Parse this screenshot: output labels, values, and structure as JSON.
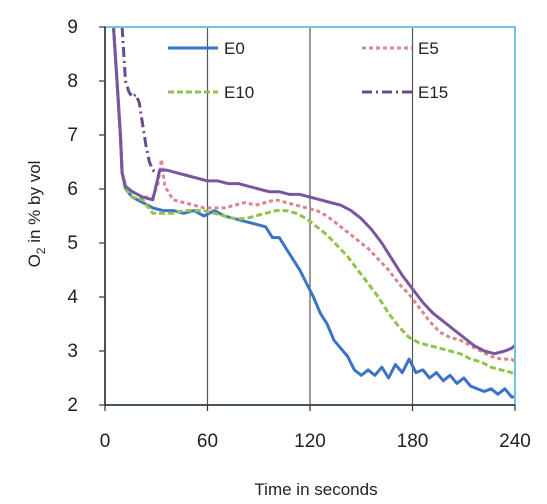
{
  "chart_data": {
    "type": "line",
    "title": "",
    "xlabel": "Time in seconds",
    "ylabel_main": "O",
    "ylabel_sub": "2",
    "ylabel_rest": " in % by vol",
    "xlim": [
      0,
      240
    ],
    "ylim": [
      2,
      9
    ],
    "xticks": [
      0,
      60,
      120,
      180,
      240
    ],
    "yticks": [
      2,
      3,
      4,
      5,
      6,
      7,
      8,
      9
    ],
    "vertical_grid": true,
    "horizontal_grid": false,
    "legend_placement": "top, inside plot, two columns",
    "frame_color": "#6fc4e6",
    "grid_color": "#555555",
    "series": [
      {
        "name": "E0",
        "color": "#3b74c4",
        "dash": "solid",
        "points": [
          [
            5,
            9.0
          ],
          [
            7,
            8.0
          ],
          [
            9,
            7.0
          ],
          [
            10,
            6.3
          ],
          [
            12,
            6.0
          ],
          [
            16,
            5.85
          ],
          [
            22,
            5.75
          ],
          [
            28,
            5.65
          ],
          [
            34,
            5.6
          ],
          [
            40,
            5.6
          ],
          [
            46,
            5.55
          ],
          [
            52,
            5.6
          ],
          [
            58,
            5.5
          ],
          [
            64,
            5.6
          ],
          [
            70,
            5.5
          ],
          [
            76,
            5.45
          ],
          [
            82,
            5.4
          ],
          [
            88,
            5.35
          ],
          [
            94,
            5.3
          ],
          [
            98,
            5.1
          ],
          [
            102,
            5.1
          ],
          [
            106,
            4.9
          ],
          [
            110,
            4.7
          ],
          [
            114,
            4.5
          ],
          [
            118,
            4.25
          ],
          [
            122,
            4.0
          ],
          [
            126,
            3.7
          ],
          [
            130,
            3.5
          ],
          [
            134,
            3.2
          ],
          [
            138,
            3.05
          ],
          [
            142,
            2.9
          ],
          [
            146,
            2.65
          ],
          [
            150,
            2.55
          ],
          [
            154,
            2.65
          ],
          [
            158,
            2.55
          ],
          [
            162,
            2.7
          ],
          [
            166,
            2.5
          ],
          [
            170,
            2.75
          ],
          [
            174,
            2.6
          ],
          [
            178,
            2.85
          ],
          [
            182,
            2.6
          ],
          [
            186,
            2.65
          ],
          [
            190,
            2.5
          ],
          [
            194,
            2.6
          ],
          [
            198,
            2.45
          ],
          [
            202,
            2.55
          ],
          [
            206,
            2.4
          ],
          [
            210,
            2.5
          ],
          [
            214,
            2.35
          ],
          [
            218,
            2.3
          ],
          [
            222,
            2.25
          ],
          [
            226,
            2.3
          ],
          [
            230,
            2.2
          ],
          [
            234,
            2.3
          ],
          [
            238,
            2.15
          ],
          [
            240,
            2.15
          ]
        ]
      },
      {
        "name": "E5",
        "color": "#d9878a",
        "dash": "4,3",
        "points": [
          [
            5,
            9.0
          ],
          [
            7,
            8.0
          ],
          [
            9,
            7.0
          ],
          [
            10,
            6.3
          ],
          [
            12,
            6.05
          ],
          [
            16,
            5.95
          ],
          [
            22,
            5.85
          ],
          [
            28,
            5.85
          ],
          [
            31,
            6.1
          ],
          [
            33,
            6.55
          ],
          [
            35,
            6.05
          ],
          [
            40,
            5.8
          ],
          [
            46,
            5.75
          ],
          [
            52,
            5.7
          ],
          [
            58,
            5.65
          ],
          [
            64,
            5.65
          ],
          [
            70,
            5.65
          ],
          [
            76,
            5.7
          ],
          [
            82,
            5.75
          ],
          [
            88,
            5.7
          ],
          [
            94,
            5.75
          ],
          [
            100,
            5.8
          ],
          [
            106,
            5.75
          ],
          [
            112,
            5.7
          ],
          [
            118,
            5.65
          ],
          [
            124,
            5.6
          ],
          [
            130,
            5.5
          ],
          [
            136,
            5.35
          ],
          [
            142,
            5.2
          ],
          [
            148,
            5.05
          ],
          [
            154,
            4.9
          ],
          [
            160,
            4.7
          ],
          [
            166,
            4.5
          ],
          [
            172,
            4.25
          ],
          [
            178,
            4.05
          ],
          [
            184,
            3.8
          ],
          [
            190,
            3.55
          ],
          [
            196,
            3.35
          ],
          [
            202,
            3.25
          ],
          [
            208,
            3.2
          ],
          [
            214,
            3.1
          ],
          [
            220,
            3.0
          ],
          [
            226,
            2.9
          ],
          [
            232,
            2.85
          ],
          [
            238,
            2.85
          ],
          [
            240,
            2.8
          ]
        ]
      },
      {
        "name": "E10",
        "color": "#8fc24e",
        "dash": "6,3",
        "points": [
          [
            5,
            9.0
          ],
          [
            7,
            8.0
          ],
          [
            9,
            7.0
          ],
          [
            10,
            6.3
          ],
          [
            12,
            6.0
          ],
          [
            16,
            5.85
          ],
          [
            22,
            5.8
          ],
          [
            28,
            5.55
          ],
          [
            34,
            5.55
          ],
          [
            40,
            5.55
          ],
          [
            46,
            5.6
          ],
          [
            52,
            5.6
          ],
          [
            58,
            5.6
          ],
          [
            64,
            5.55
          ],
          [
            70,
            5.5
          ],
          [
            76,
            5.45
          ],
          [
            82,
            5.45
          ],
          [
            88,
            5.5
          ],
          [
            94,
            5.55
          ],
          [
            100,
            5.6
          ],
          [
            106,
            5.6
          ],
          [
            112,
            5.55
          ],
          [
            118,
            5.45
          ],
          [
            124,
            5.3
          ],
          [
            130,
            5.15
          ],
          [
            136,
            4.95
          ],
          [
            142,
            4.75
          ],
          [
            148,
            4.5
          ],
          [
            154,
            4.25
          ],
          [
            160,
            4.0
          ],
          [
            166,
            3.7
          ],
          [
            172,
            3.45
          ],
          [
            178,
            3.25
          ],
          [
            184,
            3.15
          ],
          [
            190,
            3.1
          ],
          [
            196,
            3.05
          ],
          [
            202,
            3.0
          ],
          [
            208,
            2.95
          ],
          [
            214,
            2.85
          ],
          [
            220,
            2.8
          ],
          [
            226,
            2.7
          ],
          [
            232,
            2.65
          ],
          [
            238,
            2.6
          ],
          [
            240,
            2.55
          ]
        ]
      },
      {
        "name": "E15",
        "color": "#7a55a0",
        "dash": "solid",
        "points": [
          [
            5,
            9.0
          ],
          [
            7,
            8.0
          ],
          [
            9,
            7.0
          ],
          [
            10,
            6.3
          ],
          [
            12,
            6.05
          ],
          [
            16,
            5.95
          ],
          [
            22,
            5.85
          ],
          [
            28,
            5.8
          ],
          [
            32,
            6.35
          ],
          [
            36,
            6.35
          ],
          [
            42,
            6.3
          ],
          [
            48,
            6.25
          ],
          [
            54,
            6.2
          ],
          [
            60,
            6.15
          ],
          [
            66,
            6.15
          ],
          [
            72,
            6.1
          ],
          [
            78,
            6.1
          ],
          [
            84,
            6.05
          ],
          [
            90,
            6.0
          ],
          [
            96,
            5.95
          ],
          [
            102,
            5.95
          ],
          [
            108,
            5.9
          ],
          [
            114,
            5.9
          ],
          [
            120,
            5.85
          ],
          [
            126,
            5.8
          ],
          [
            132,
            5.75
          ],
          [
            138,
            5.7
          ],
          [
            144,
            5.6
          ],
          [
            150,
            5.45
          ],
          [
            156,
            5.25
          ],
          [
            162,
            5.0
          ],
          [
            168,
            4.7
          ],
          [
            174,
            4.4
          ],
          [
            180,
            4.15
          ],
          [
            186,
            3.9
          ],
          [
            192,
            3.7
          ],
          [
            198,
            3.55
          ],
          [
            204,
            3.4
          ],
          [
            210,
            3.25
          ],
          [
            216,
            3.1
          ],
          [
            222,
            3.0
          ],
          [
            228,
            2.95
          ],
          [
            234,
            3.0
          ],
          [
            238,
            3.05
          ],
          [
            240,
            3.1
          ]
        ]
      },
      {
        "name": "",
        "color": "#6a4a8e",
        "dash": "10,4,2,4",
        "points": [
          [
            10,
            9.0
          ],
          [
            12,
            8.0
          ],
          [
            14,
            7.8
          ],
          [
            16,
            7.7
          ],
          [
            18,
            7.75
          ],
          [
            20,
            7.6
          ],
          [
            22,
            7.2
          ],
          [
            24,
            6.8
          ],
          [
            26,
            6.5
          ],
          [
            28,
            6.35
          ],
          [
            30,
            6.3
          ],
          [
            32,
            6.3
          ]
        ]
      }
    ],
    "legend": [
      {
        "label": "E0",
        "color": "#3b74c4",
        "dash": "solid"
      },
      {
        "label": "E5",
        "color": "#d9878a",
        "dash": "4,3"
      },
      {
        "label": "E10",
        "color": "#8fc24e",
        "dash": "6,3"
      },
      {
        "label": "E15",
        "color": "#6a4a8e",
        "dash": "10,4,2,4"
      }
    ]
  }
}
